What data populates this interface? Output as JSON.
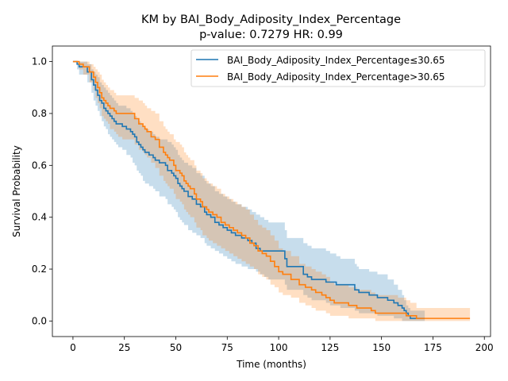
{
  "chart_data": {
    "type": "line",
    "subtype": "kaplan-meier",
    "title": "KM by BAI_Body_Adiposity_Index_Percentage",
    "subtitle": "p-value: 0.7279  HR: 0.99",
    "xlabel": "Time (months)",
    "ylabel": "Survival Probability",
    "xlim": [
      -10,
      203
    ],
    "ylim": [
      -0.06,
      1.06
    ],
    "xticks": [
      0,
      25,
      50,
      75,
      100,
      125,
      150,
      175,
      200
    ],
    "yticks": [
      0.0,
      0.2,
      0.4,
      0.6,
      0.8,
      1.0
    ],
    "xtick_labels": [
      "0",
      "25",
      "50",
      "75",
      "100",
      "125",
      "150",
      "175",
      "200"
    ],
    "ytick_labels": [
      "0.0",
      "0.2",
      "0.4",
      "0.6",
      "0.8",
      "1.0"
    ],
    "grid": false,
    "legend_position": "top-right",
    "series": [
      {
        "name": "BAI_Body_Adiposity_Index_Percentage≤30.65",
        "color": "#1f77b4",
        "x": [
          0,
          2,
          3,
          7,
          9,
          10,
          11,
          12,
          13,
          14,
          15,
          16,
          17,
          18,
          19,
          20,
          21,
          22,
          24,
          26,
          28,
          29,
          30,
          31,
          32,
          33,
          34,
          35,
          37,
          39,
          40,
          42,
          45,
          46,
          48,
          49,
          50,
          51,
          52,
          53,
          54,
          56,
          58,
          60,
          62,
          64,
          65,
          67,
          69,
          71,
          73,
          75,
          77,
          79,
          82,
          85,
          87,
          89,
          91,
          93,
          95,
          103,
          104,
          112,
          114,
          116,
          123,
          125,
          128,
          130,
          137,
          138,
          139,
          144,
          148,
          153,
          156,
          158,
          160,
          161,
          162,
          163,
          164,
          171
        ],
        "y": [
          1.0,
          0.99,
          0.98,
          0.96,
          0.93,
          0.91,
          0.89,
          0.87,
          0.85,
          0.84,
          0.82,
          0.81,
          0.8,
          0.79,
          0.78,
          0.77,
          0.76,
          0.76,
          0.75,
          0.74,
          0.73,
          0.72,
          0.71,
          0.69,
          0.68,
          0.67,
          0.66,
          0.65,
          0.64,
          0.63,
          0.62,
          0.61,
          0.6,
          0.58,
          0.57,
          0.56,
          0.55,
          0.53,
          0.52,
          0.51,
          0.5,
          0.48,
          0.47,
          0.45,
          0.44,
          0.42,
          0.41,
          0.4,
          0.38,
          0.37,
          0.36,
          0.35,
          0.34,
          0.33,
          0.32,
          0.31,
          0.3,
          0.28,
          0.27,
          0.27,
          0.27,
          0.24,
          0.21,
          0.18,
          0.17,
          0.16,
          0.15,
          0.15,
          0.14,
          0.14,
          0.12,
          0.12,
          0.11,
          0.1,
          0.09,
          0.08,
          0.07,
          0.06,
          0.05,
          0.04,
          0.03,
          0.02,
          0.01,
          0.01
        ],
        "ci_lower": [
          1.0,
          0.97,
          0.95,
          0.92,
          0.88,
          0.85,
          0.83,
          0.81,
          0.79,
          0.77,
          0.75,
          0.74,
          0.72,
          0.71,
          0.7,
          0.69,
          0.68,
          0.67,
          0.66,
          0.64,
          0.63,
          0.61,
          0.6,
          0.58,
          0.57,
          0.56,
          0.54,
          0.53,
          0.52,
          0.51,
          0.5,
          0.48,
          0.47,
          0.45,
          0.44,
          0.43,
          0.42,
          0.4,
          0.39,
          0.38,
          0.37,
          0.35,
          0.34,
          0.33,
          0.32,
          0.3,
          0.29,
          0.28,
          0.27,
          0.26,
          0.25,
          0.24,
          0.23,
          0.22,
          0.21,
          0.2,
          0.2,
          0.19,
          0.18,
          0.17,
          0.16,
          0.14,
          0.12,
          0.1,
          0.09,
          0.08,
          0.07,
          0.06,
          0.06,
          0.05,
          0.04,
          0.04,
          0.03,
          0.03,
          0.02,
          0.02,
          0.01,
          0.01,
          0.0,
          0.0,
          0.0,
          0.0,
          0.0,
          0.0
        ],
        "ci_upper": [
          1.0,
          1.0,
          1.0,
          0.99,
          0.97,
          0.96,
          0.95,
          0.94,
          0.92,
          0.91,
          0.9,
          0.89,
          0.88,
          0.87,
          0.86,
          0.85,
          0.84,
          0.83,
          0.83,
          0.82,
          0.81,
          0.8,
          0.79,
          0.78,
          0.77,
          0.76,
          0.75,
          0.74,
          0.73,
          0.72,
          0.71,
          0.7,
          0.7,
          0.69,
          0.68,
          0.67,
          0.66,
          0.64,
          0.63,
          0.62,
          0.61,
          0.6,
          0.59,
          0.57,
          0.56,
          0.54,
          0.53,
          0.52,
          0.5,
          0.49,
          0.48,
          0.47,
          0.46,
          0.45,
          0.44,
          0.43,
          0.42,
          0.41,
          0.4,
          0.39,
          0.38,
          0.35,
          0.32,
          0.3,
          0.29,
          0.28,
          0.27,
          0.26,
          0.25,
          0.24,
          0.22,
          0.21,
          0.2,
          0.19,
          0.18,
          0.16,
          0.14,
          0.12,
          0.1,
          0.08,
          0.06,
          0.05,
          0.04,
          0.04
        ]
      },
      {
        "name": "BAI_Body_Adiposity_Index_Percentage>30.65",
        "color": "#ff7f0e",
        "x": [
          0,
          3,
          5,
          8,
          10,
          11,
          12,
          13,
          14,
          15,
          16,
          17,
          18,
          20,
          21,
          22,
          24,
          30,
          32,
          34,
          35,
          36,
          38,
          40,
          42,
          44,
          45,
          46,
          47,
          49,
          50,
          52,
          53,
          54,
          55,
          56,
          57,
          59,
          60,
          62,
          63,
          65,
          66,
          68,
          70,
          72,
          74,
          76,
          78,
          80,
          82,
          84,
          86,
          88,
          90,
          92,
          94,
          96,
          98,
          100,
          102,
          106,
          110,
          113,
          116,
          118,
          121,
          123,
          125,
          127,
          130,
          134,
          138,
          145,
          147,
          158,
          162,
          164,
          167,
          193
        ],
        "y": [
          1.0,
          0.99,
          0.98,
          0.96,
          0.94,
          0.92,
          0.9,
          0.88,
          0.86,
          0.85,
          0.84,
          0.83,
          0.82,
          0.81,
          0.8,
          0.8,
          0.8,
          0.78,
          0.76,
          0.75,
          0.74,
          0.73,
          0.71,
          0.7,
          0.67,
          0.65,
          0.64,
          0.63,
          0.62,
          0.6,
          0.58,
          0.57,
          0.56,
          0.54,
          0.53,
          0.52,
          0.51,
          0.49,
          0.47,
          0.46,
          0.44,
          0.43,
          0.42,
          0.41,
          0.4,
          0.38,
          0.37,
          0.36,
          0.35,
          0.34,
          0.33,
          0.32,
          0.3,
          0.29,
          0.27,
          0.26,
          0.25,
          0.23,
          0.21,
          0.19,
          0.18,
          0.16,
          0.14,
          0.13,
          0.12,
          0.11,
          0.1,
          0.09,
          0.08,
          0.07,
          0.07,
          0.06,
          0.05,
          0.04,
          0.03,
          0.03,
          0.02,
          0.02,
          0.01,
          0.01
        ],
        "ci_lower": [
          1.0,
          0.97,
          0.95,
          0.92,
          0.89,
          0.86,
          0.84,
          0.82,
          0.79,
          0.78,
          0.77,
          0.76,
          0.74,
          0.73,
          0.72,
          0.71,
          0.7,
          0.68,
          0.66,
          0.65,
          0.64,
          0.63,
          0.61,
          0.59,
          0.56,
          0.54,
          0.53,
          0.52,
          0.51,
          0.49,
          0.47,
          0.46,
          0.45,
          0.43,
          0.42,
          0.41,
          0.4,
          0.38,
          0.36,
          0.35,
          0.33,
          0.32,
          0.31,
          0.3,
          0.29,
          0.28,
          0.27,
          0.26,
          0.25,
          0.24,
          0.23,
          0.22,
          0.21,
          0.2,
          0.18,
          0.17,
          0.16,
          0.14,
          0.13,
          0.11,
          0.1,
          0.09,
          0.07,
          0.06,
          0.05,
          0.04,
          0.04,
          0.03,
          0.02,
          0.02,
          0.02,
          0.01,
          0.01,
          0.01,
          0.0,
          0.0,
          0.0,
          0.0,
          0.0,
          0.0
        ],
        "ci_upper": [
          1.0,
          1.0,
          1.0,
          0.99,
          0.98,
          0.97,
          0.96,
          0.95,
          0.93,
          0.92,
          0.91,
          0.9,
          0.89,
          0.88,
          0.87,
          0.87,
          0.87,
          0.86,
          0.85,
          0.84,
          0.83,
          0.82,
          0.81,
          0.8,
          0.77,
          0.75,
          0.74,
          0.73,
          0.72,
          0.7,
          0.69,
          0.68,
          0.67,
          0.65,
          0.64,
          0.63,
          0.62,
          0.6,
          0.58,
          0.57,
          0.55,
          0.54,
          0.53,
          0.52,
          0.51,
          0.49,
          0.48,
          0.47,
          0.46,
          0.45,
          0.44,
          0.43,
          0.41,
          0.39,
          0.37,
          0.36,
          0.35,
          0.33,
          0.31,
          0.28,
          0.27,
          0.25,
          0.22,
          0.21,
          0.2,
          0.19,
          0.18,
          0.17,
          0.15,
          0.14,
          0.14,
          0.13,
          0.12,
          0.11,
          0.1,
          0.09,
          0.08,
          0.07,
          0.05,
          0.05
        ]
      }
    ]
  }
}
